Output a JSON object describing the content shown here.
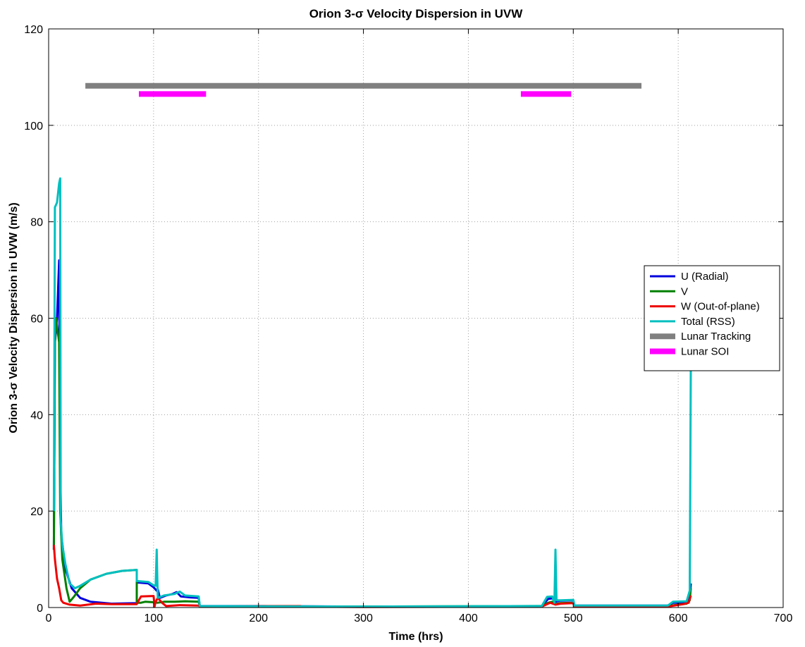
{
  "chart_data": {
    "type": "line",
    "title": "Orion 3-σ Velocity Dispersion in UVW",
    "xlabel": "Time (hrs)",
    "ylabel": "Orion 3-σ Velocity Dispersion in UVW (m/s)",
    "xlim": [
      0,
      700
    ],
    "ylim": [
      0,
      120
    ],
    "xticks": [
      0,
      100,
      200,
      300,
      400,
      500,
      600,
      700
    ],
    "yticks": [
      0,
      20,
      40,
      60,
      80,
      100,
      120
    ],
    "grid": true,
    "legend_position": "right",
    "series": [
      {
        "name": "U (Radial)",
        "color": "#0000dd",
        "points": [
          [
            5,
            12
          ],
          [
            6,
            55
          ],
          [
            8,
            60
          ],
          [
            10,
            72
          ],
          [
            11,
            30
          ],
          [
            12,
            15
          ],
          [
            16,
            8
          ],
          [
            22,
            4
          ],
          [
            30,
            2
          ],
          [
            40,
            1.2
          ],
          [
            60,
            0.8
          ],
          [
            84,
            0.9
          ],
          [
            84,
            5.2
          ],
          [
            95,
            5
          ],
          [
            100,
            4.2
          ],
          [
            103,
            3.5
          ],
          [
            104,
            3.8
          ],
          [
            106,
            2
          ],
          [
            112,
            2.5
          ],
          [
            118,
            2.8
          ],
          [
            122,
            3.2
          ],
          [
            126,
            2.3
          ],
          [
            135,
            2.1
          ],
          [
            143,
            2.0
          ],
          [
            144,
            0.3
          ],
          [
            200,
            0.3
          ],
          [
            300,
            0.2
          ],
          [
            400,
            0.2
          ],
          [
            470,
            0.3
          ],
          [
            476,
            1.8
          ],
          [
            480,
            1.9
          ],
          [
            483,
            1.2
          ],
          [
            487,
            1.4
          ],
          [
            500,
            1.5
          ],
          [
            501,
            0.4
          ],
          [
            590,
            0.4
          ],
          [
            595,
            1.0
          ],
          [
            608,
            1.1
          ],
          [
            611,
            2.0
          ],
          [
            612,
            5
          ]
        ]
      },
      {
        "name": "V",
        "color": "#008000",
        "points": [
          [
            5,
            12
          ],
          [
            6,
            55
          ],
          [
            7,
            60
          ],
          [
            10,
            55
          ],
          [
            11,
            20
          ],
          [
            13,
            10
          ],
          [
            17,
            4
          ],
          [
            20,
            1.2
          ],
          [
            24,
            2.2
          ],
          [
            30,
            4
          ],
          [
            40,
            5.8
          ],
          [
            55,
            7
          ],
          [
            70,
            7.6
          ],
          [
            84,
            7.8
          ],
          [
            84,
            1
          ],
          [
            88,
            1
          ],
          [
            92,
            1.2
          ],
          [
            100,
            1.1
          ],
          [
            104,
            1.0
          ],
          [
            110,
            1.2
          ],
          [
            120,
            1.2
          ],
          [
            130,
            1.3
          ],
          [
            143,
            1.2
          ],
          [
            144,
            0.3
          ],
          [
            300,
            0.2
          ],
          [
            470,
            0.3
          ],
          [
            476,
            1
          ],
          [
            480,
            1.2
          ],
          [
            483,
            0.7
          ],
          [
            487,
            0.9
          ],
          [
            500,
            1
          ],
          [
            501,
            0.3
          ],
          [
            590,
            0.3
          ],
          [
            600,
            0.6
          ],
          [
            608,
            0.8
          ],
          [
            611,
            1.5
          ],
          [
            612,
            4
          ]
        ]
      },
      {
        "name": "W (Out-of-plane)",
        "color": "#ee0000",
        "points": [
          [
            5,
            13
          ],
          [
            6,
            10
          ],
          [
            8,
            6
          ],
          [
            10,
            4
          ],
          [
            12,
            1.5
          ],
          [
            14,
            1.0
          ],
          [
            20,
            0.6
          ],
          [
            30,
            0.4
          ],
          [
            45,
            0.8
          ],
          [
            60,
            0.7
          ],
          [
            84,
            0.7
          ],
          [
            86,
            1.5
          ],
          [
            88,
            2.3
          ],
          [
            100,
            2.4
          ],
          [
            101,
            0.2
          ],
          [
            102,
            1.2
          ],
          [
            104,
            2.0
          ],
          [
            108,
            1.0
          ],
          [
            112,
            0.3
          ],
          [
            125,
            0.5
          ],
          [
            143,
            0.4
          ],
          [
            144,
            0.2
          ],
          [
            205,
            0.3
          ],
          [
            240,
            0.3
          ],
          [
            241,
            0.2
          ],
          [
            300,
            0.1
          ],
          [
            470,
            0.2
          ],
          [
            478,
            1
          ],
          [
            483,
            0.6
          ],
          [
            488,
            0.8
          ],
          [
            500,
            0.9
          ],
          [
            501,
            0.2
          ],
          [
            590,
            0.2
          ],
          [
            605,
            0.7
          ],
          [
            610,
            1.0
          ],
          [
            612,
            2.5
          ]
        ]
      },
      {
        "name": "Total (RSS)",
        "color": "#00bfbf",
        "points": [
          [
            5,
            20
          ],
          [
            6,
            83
          ],
          [
            8,
            84
          ],
          [
            9,
            86
          ],
          [
            10,
            88
          ],
          [
            11,
            89
          ],
          [
            11.5,
            18
          ],
          [
            13,
            13
          ],
          [
            16,
            9
          ],
          [
            20,
            5
          ],
          [
            25,
            4
          ],
          [
            30,
            4.5
          ],
          [
            40,
            5.8
          ],
          [
            55,
            7
          ],
          [
            70,
            7.6
          ],
          [
            84,
            7.8
          ],
          [
            84,
            5.5
          ],
          [
            95,
            5.3
          ],
          [
            100,
            4.6
          ],
          [
            102,
            4.5
          ],
          [
            103,
            12
          ],
          [
            104,
            2
          ],
          [
            110,
            2.5
          ],
          [
            120,
            2.8
          ],
          [
            125,
            3.3
          ],
          [
            130,
            2.5
          ],
          [
            143,
            2.3
          ],
          [
            144,
            0.3
          ],
          [
            300,
            0.2
          ],
          [
            470,
            0.3
          ],
          [
            475,
            2.2
          ],
          [
            480,
            2.3
          ],
          [
            482,
            1.0
          ],
          [
            483,
            12
          ],
          [
            484,
            1.5
          ],
          [
            488,
            1.5
          ],
          [
            500,
            1.6
          ],
          [
            501,
            0.4
          ],
          [
            590,
            0.4
          ],
          [
            595,
            1.2
          ],
          [
            608,
            1.3
          ],
          [
            611,
            3.5
          ],
          [
            612,
            50
          ]
        ]
      },
      {
        "name": "Lunar Tracking",
        "color": "#808080",
        "width": 8,
        "points": [
          [
            35,
            108.2
          ],
          [
            565,
            108.2
          ]
        ]
      },
      {
        "name": "Lunar SOI",
        "color": "#ff00ff",
        "width": 8,
        "segments": [
          [
            [
              86,
              106.5
            ],
            [
              150,
              106.5
            ]
          ],
          [
            [
              450,
              106.5
            ],
            [
              498,
              106.5
            ]
          ]
        ]
      }
    ]
  }
}
